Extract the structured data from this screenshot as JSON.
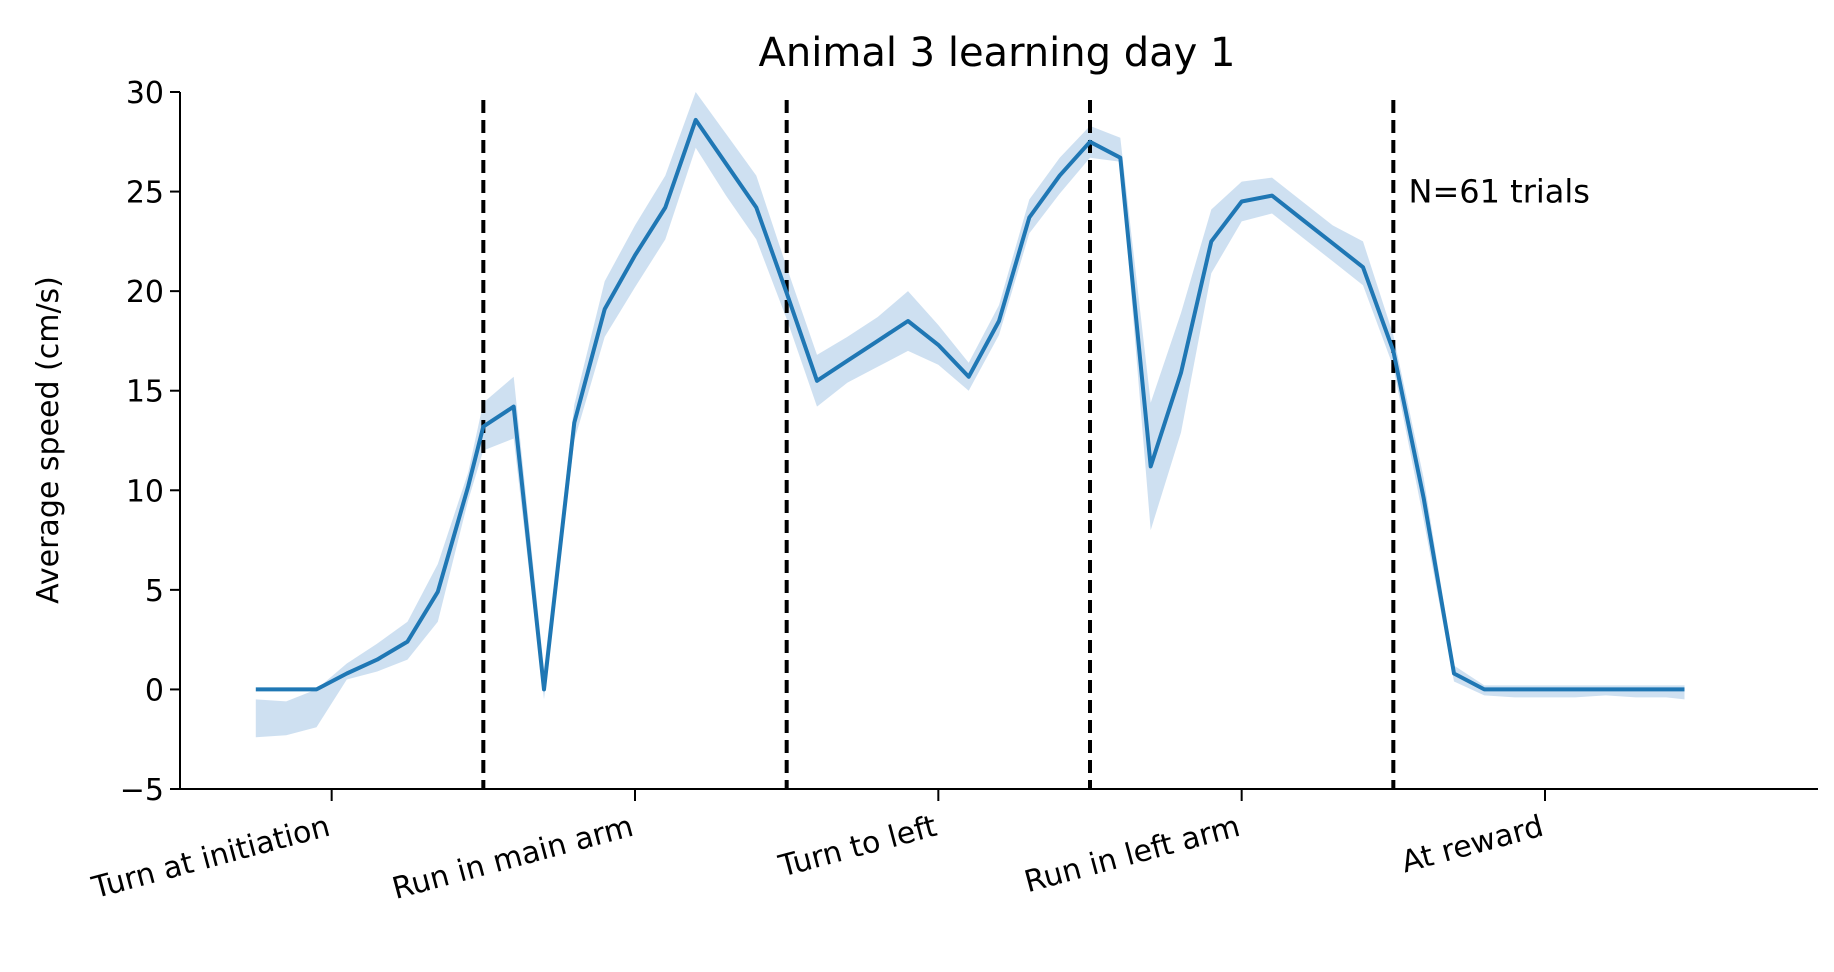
{
  "chart_data": {
    "type": "line",
    "title": "Animal 3 learning day 1",
    "xlabel": "",
    "ylabel": "Average speed (cm/s)",
    "ylim": [
      -5,
      30
    ],
    "yticks": [
      -5,
      0,
      5,
      10,
      15,
      20,
      25,
      30
    ],
    "ytick_labels": [
      "−5",
      "0",
      "5",
      "10",
      "15",
      "20",
      "25",
      "30"
    ],
    "xlim": [
      0,
      54
    ],
    "categories": [
      "Turn at initiation",
      "Run in main arm",
      "Turn to left",
      "Run in left arm",
      "At reward"
    ],
    "category_positions": [
      5,
      15,
      25,
      35,
      45
    ],
    "boundaries": [
      10,
      20,
      30,
      40
    ],
    "annotation": "N=61 trials",
    "annotation_pos": [
      40.5,
      25
    ],
    "grid": false,
    "colors": {
      "line": "#1f77b4",
      "band": "#c6dbee",
      "boundary": "#000000"
    },
    "series": [
      {
        "x": [
          2.5,
          3.5,
          4.5,
          5.5,
          6.5,
          7.5,
          8.5,
          9.5,
          10,
          11,
          12,
          13,
          14,
          15,
          16,
          17,
          18,
          19,
          20,
          21,
          22,
          23,
          24,
          25,
          26,
          27,
          28,
          29,
          30,
          31,
          32,
          33,
          34,
          35,
          36,
          37,
          38,
          39,
          40,
          41,
          42,
          43,
          44,
          45,
          46,
          47,
          48,
          49,
          49.6
        ],
        "y": [
          0,
          0,
          0,
          0.8,
          1.5,
          2.4,
          4.9,
          10.2,
          13.2,
          14.2,
          0,
          13.4,
          19.1,
          21.8,
          24.2,
          28.6,
          26.4,
          24.2,
          19.9,
          15.5,
          16.5,
          17.5,
          18.5,
          17.3,
          15.7,
          18.5,
          23.7,
          25.8,
          27.5,
          26.7,
          11.2,
          15.9,
          22.5,
          24.5,
          24.8,
          23.6,
          22.4,
          21.2,
          17.0,
          9.6,
          0.8,
          0,
          0,
          0,
          0,
          0,
          0,
          0,
          0
        ],
        "lower": [
          -2.4,
          -2.3,
          -1.9,
          0.5,
          0.9,
          1.5,
          3.4,
          9.5,
          12.0,
          12.6,
          -0.5,
          12.5,
          17.7,
          20.2,
          22.6,
          27.2,
          24.8,
          22.6,
          18.6,
          14.2,
          15.4,
          16.2,
          17.0,
          16.3,
          15.0,
          17.8,
          22.9,
          24.9,
          26.7,
          26.5,
          8.0,
          12.9,
          20.9,
          23.5,
          23.9,
          22.7,
          21.5,
          20.3,
          16.2,
          8.5,
          0.4,
          -0.3,
          -0.4,
          -0.4,
          -0.4,
          -0.3,
          -0.4,
          -0.4,
          -0.5
        ],
        "upper": [
          -0.5,
          -0.6,
          0.0,
          1.3,
          2.3,
          3.4,
          6.3,
          10.9,
          14.4,
          15.7,
          1.0,
          14.3,
          20.5,
          23.3,
          25.8,
          30.0,
          27.9,
          25.8,
          21.2,
          16.8,
          17.7,
          18.7,
          20.0,
          18.3,
          16.4,
          19.3,
          24.6,
          26.7,
          28.3,
          27.7,
          14.4,
          18.9,
          24.1,
          25.5,
          25.7,
          24.5,
          23.3,
          22.5,
          17.8,
          10.6,
          1.2,
          0.2,
          0.2,
          0.2,
          0.2,
          0.2,
          0.2,
          0.2,
          0.2
        ]
      }
    ]
  }
}
